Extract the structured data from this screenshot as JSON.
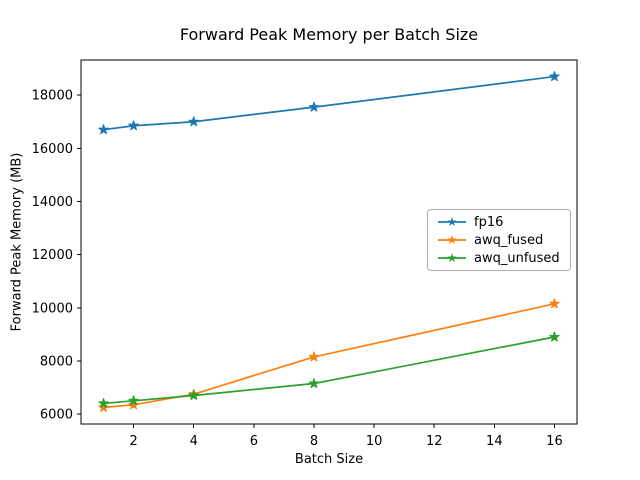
{
  "figure": {
    "title": "Forward Peak Memory per Batch Size",
    "xlabel": "Batch Size",
    "ylabel": "Forward Peak Memory (MB)"
  },
  "chart_data": {
    "type": "line",
    "title": "Forward Peak Memory per Batch Size",
    "xlabel": "Batch Size",
    "ylabel": "Forward Peak Memory (MB)",
    "x": [
      1,
      2,
      4,
      8,
      16
    ],
    "series": [
      {
        "name": "fp16",
        "color": "#1f77b4",
        "marker": "star",
        "values": [
          16700,
          16850,
          17000,
          17550,
          18700
        ]
      },
      {
        "name": "awq_fused",
        "color": "#ff7f0e",
        "marker": "star",
        "values": [
          6250,
          6350,
          6750,
          8150,
          10150
        ]
      },
      {
        "name": "awq_unfused",
        "color": "#2ca02c",
        "marker": "star",
        "values": [
          6400,
          6500,
          6700,
          7150,
          8900
        ]
      }
    ],
    "xticks": [
      2,
      4,
      6,
      8,
      10,
      12,
      14,
      16
    ],
    "yticks": [
      6000,
      8000,
      10000,
      12000,
      14000,
      16000,
      18000
    ],
    "xlim": [
      0.25,
      16.75
    ],
    "ylim": [
      5627,
      19323
    ],
    "grid": false,
    "legend_position": "center right",
    "axis_color": "#000000",
    "background_color": "#ffffff"
  }
}
